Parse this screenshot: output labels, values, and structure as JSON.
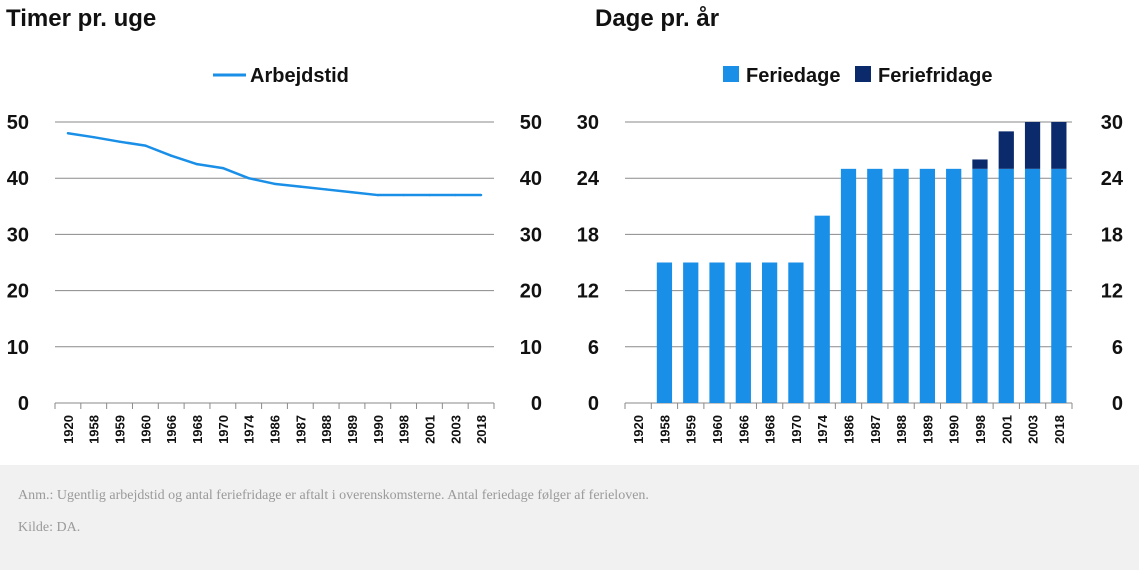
{
  "colors": {
    "line": "#1a8fe8",
    "feriedage": "#1a8fe8",
    "feriefridage": "#0a2a6b",
    "grid": "#8a8a8a"
  },
  "chart_data": [
    {
      "type": "line",
      "title": "Timer pr. uge",
      "categories": [
        "1920",
        "1958",
        "1959",
        "1960",
        "1966",
        "1968",
        "1970",
        "1974",
        "1986",
        "1987",
        "1988",
        "1989",
        "1990",
        "1998",
        "2001",
        "2003",
        "2018"
      ],
      "series": [
        {
          "name": "Arbejdstid",
          "values": [
            48,
            47.3,
            46.5,
            45.8,
            44,
            42.5,
            41.8,
            40,
            39,
            38.5,
            38,
            37.5,
            37,
            37,
            37,
            37,
            37
          ]
        }
      ],
      "ylim": [
        0,
        50
      ],
      "yticks": [
        "0",
        "10",
        "20",
        "30",
        "40",
        "50"
      ],
      "legend_position": "top-center",
      "grid": true
    },
    {
      "type": "bar",
      "stacked": true,
      "title": "Dage pr. år",
      "categories": [
        "1920",
        "1958",
        "1959",
        "1960",
        "1966",
        "1968",
        "1970",
        "1974",
        "1986",
        "1987",
        "1988",
        "1989",
        "1990",
        "1998",
        "2001",
        "2003",
        "2018"
      ],
      "series": [
        {
          "name": "Feriedage",
          "values": [
            0,
            15,
            15,
            15,
            15,
            15,
            15,
            20,
            25,
            25,
            25,
            25,
            25,
            25,
            25,
            25,
            25
          ]
        },
        {
          "name": "Feriefridage",
          "values": [
            0,
            0,
            0,
            0,
            0,
            0,
            0,
            0,
            0,
            0,
            0,
            0,
            0,
            1,
            4,
            5,
            5
          ]
        }
      ],
      "ylim": [
        0,
        30
      ],
      "yticks": [
        "0",
        "6",
        "12",
        "18",
        "24",
        "30"
      ],
      "legend_position": "top-center",
      "grid": true
    }
  ],
  "footer": {
    "note": "Anm.: Ugentlig arbejdstid og antal feriefridage er aftalt i overenskomsterne. Antal feriedage følger af ferieloven.",
    "source": "Kilde: DA."
  }
}
